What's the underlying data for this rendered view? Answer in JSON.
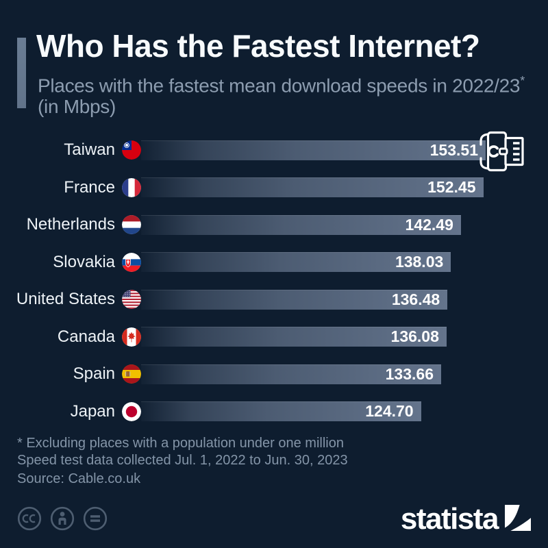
{
  "header": {
    "title": "Who Has the Fastest Internet?",
    "subtitle": "Places with the fastest mean download speeds in 2022/23",
    "subtitle_note_marker": "*",
    "subtitle_unit": "(in Mbps)"
  },
  "chart_data": {
    "type": "bar",
    "orientation": "horizontal",
    "title": "Who Has the Fastest Internet?",
    "subtitle": "Places with the fastest mean download speeds in 2022/23* (in Mbps)",
    "unit": "Mbps",
    "xlim": [
      0,
      155
    ],
    "categories": [
      "Taiwan",
      "France",
      "Netherlands",
      "Slovakia",
      "United States",
      "Canada",
      "Spain",
      "Japan"
    ],
    "values": [
      153.51,
      152.45,
      142.49,
      138.03,
      136.48,
      136.08,
      133.66,
      124.7
    ],
    "value_labels": [
      "153.51",
      "152.45",
      "142.49",
      "138.03",
      "136.48",
      "136.08",
      "133.66",
      "124.70"
    ],
    "flags": [
      "taiwan",
      "france",
      "netherlands",
      "slovakia",
      "united-states",
      "canada",
      "spain",
      "japan"
    ]
  },
  "footnotes": {
    "line1": "* Excluding places with a population under one million",
    "line2": "Speed test data collected Jul. 1, 2022 to Jun. 30, 2023",
    "source": "Source: Cable.co.uk"
  },
  "branding": {
    "logo_text": "statista",
    "license_icons": [
      "cc-icon",
      "attribution-icon",
      "equals-icon"
    ]
  },
  "colors": {
    "background": "#0e1d2f",
    "accent_bar": "#61738a",
    "bar_fill_end": "#64748c",
    "title_text": "#f7fafc",
    "subtitle_text": "#8d9db0",
    "label_text": "#edf2f6",
    "value_text": "#ffffff",
    "footnote_text": "#8495a8",
    "license_icon": "#4e5e71",
    "flag_taiwan_red": "#d7000f",
    "flag_japan_red": "#bc002d"
  }
}
